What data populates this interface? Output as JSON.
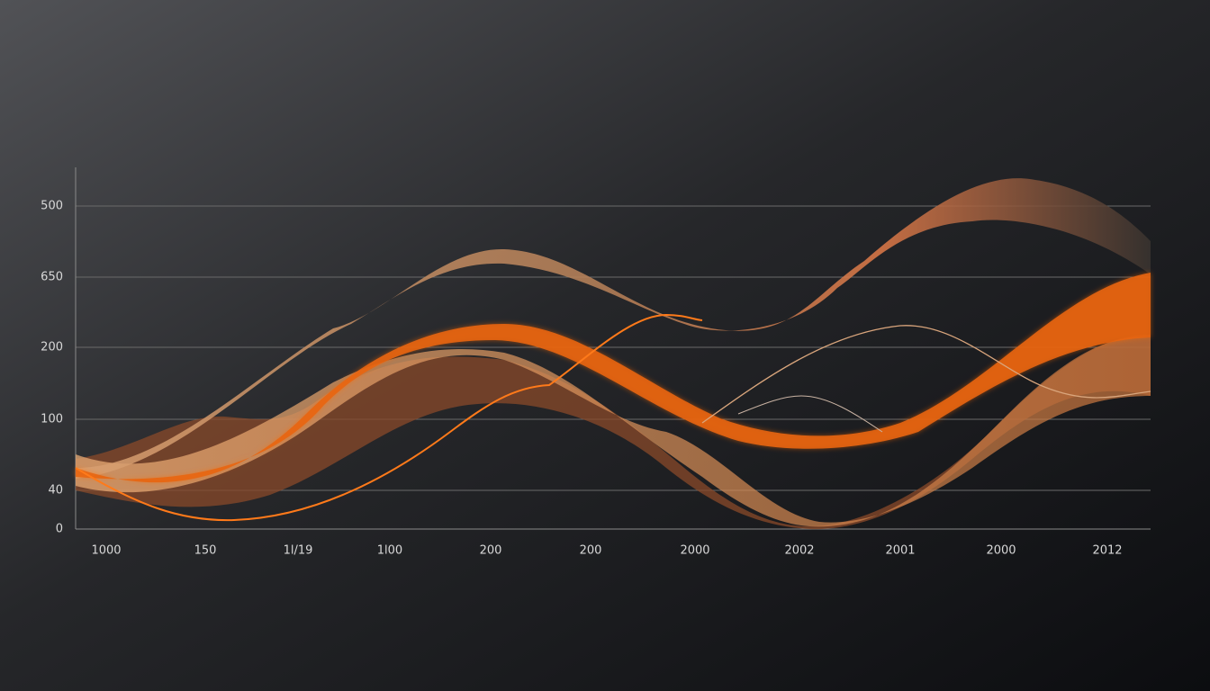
{
  "chart_data": {
    "type": "area",
    "categories": [
      "1000",
      "150",
      "1l/19",
      "1l00",
      "200",
      "200",
      "2000",
      "2002",
      "2001",
      "2000",
      "2012"
    ],
    "y_labels": [
      "500",
      "650",
      "200",
      "100",
      "40",
      "0"
    ],
    "grid": true
  }
}
